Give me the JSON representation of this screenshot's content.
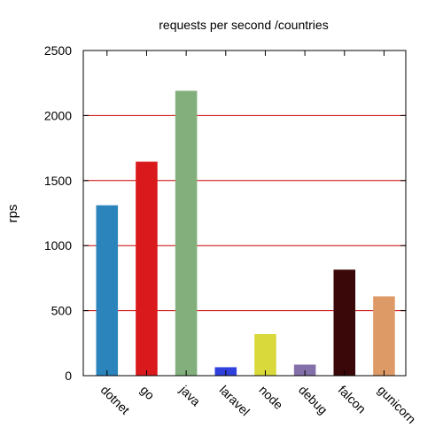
{
  "chart_data": {
    "type": "bar",
    "title": "requests per second /countries",
    "xlabel": "",
    "ylabel": "rps",
    "ylim": [
      0,
      2500
    ],
    "yticks": [
      0,
      500,
      1000,
      1500,
      2000,
      2500
    ],
    "grid": "horizontal",
    "grid_color": "#cc0000",
    "categories": [
      "dotnet",
      "go",
      "java",
      "laravel",
      "node",
      "debug",
      "falcon",
      "gunicorn"
    ],
    "values": [
      1310,
      1645,
      2190,
      65,
      320,
      85,
      815,
      610
    ],
    "colors": [
      "#2b84bc",
      "#d9191c",
      "#82af7c",
      "#3040dd",
      "#d9d93c",
      "#8470a9",
      "#3a0808",
      "#de9a66"
    ]
  }
}
